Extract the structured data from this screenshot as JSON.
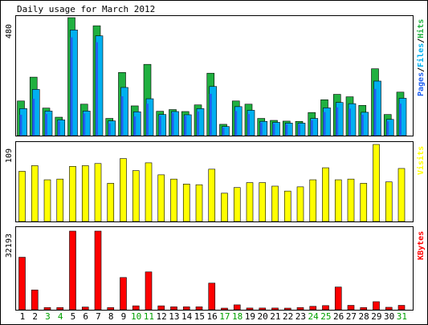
{
  "chart_data": [
    {
      "type": "bar",
      "title": "Daily usage for March 2012",
      "categories": [
        "1",
        "2",
        "3",
        "4",
        "5",
        "6",
        "7",
        "8",
        "9",
        "10",
        "11",
        "12",
        "13",
        "14",
        "15",
        "16",
        "17",
        "18",
        "19",
        "20",
        "21",
        "22",
        "23",
        "24",
        "25",
        "26",
        "27",
        "28",
        "29",
        "30",
        "31"
      ],
      "weekend_days": [
        "3",
        "4",
        "10",
        "11",
        "17",
        "18",
        "24",
        "25",
        "31"
      ],
      "ymax_label": "480",
      "ylim": [
        0,
        480
      ],
      "legend": [
        "Pages",
        "Files",
        "Hits"
      ],
      "series": [
        {
          "name": "Hits",
          "color": "#20b040",
          "values": [
            141,
            238,
            112,
            75,
            480,
            128,
            447,
            70,
            257,
            121,
            290,
            99,
            106,
            98,
            125,
            254,
            46,
            141,
            128,
            70,
            62,
            59,
            58,
            94,
            146,
            168,
            158,
            123,
            272,
            86,
            177
          ]
        },
        {
          "name": "Files",
          "color": "#00b0f0",
          "values": [
            110,
            188,
            100,
            64,
            430,
            100,
            406,
            60,
            196,
            97,
            150,
            86,
            98,
            85,
            110,
            200,
            37,
            118,
            103,
            58,
            54,
            51,
            51,
            70,
            113,
            135,
            130,
            95,
            222,
            66,
            152
          ]
        },
        {
          "name": "Pages",
          "color": "#2060f0",
          "values": [
            85,
            150,
            88,
            58,
            400,
            90,
            380,
            50,
            160,
            78,
            130,
            80,
            92,
            80,
            98,
            170,
            32,
            100,
            88,
            52,
            48,
            45,
            46,
            62,
            96,
            115,
            110,
            85,
            190,
            58,
            130
          ]
        }
      ]
    },
    {
      "type": "bar",
      "ymax_label": "109",
      "ylim": [
        0,
        109
      ],
      "series": [
        {
          "name": "Visits",
          "color": "#ffff00",
          "values": [
            71,
            79,
            59,
            60,
            78,
            79,
            82,
            54,
            89,
            72,
            83,
            66,
            60,
            53,
            52,
            74,
            40,
            48,
            55,
            55,
            50,
            43,
            49,
            59,
            76,
            59,
            60,
            54,
            109,
            56,
            75
          ]
        }
      ]
    },
    {
      "type": "bar",
      "ymax_label": "32193",
      "ylim": [
        0,
        32193
      ],
      "series": [
        {
          "name": "KBytes",
          "color": "#ff0000",
          "values": [
            21500,
            8100,
            900,
            900,
            32193,
            1100,
            32193,
            900,
            13200,
            1600,
            15500,
            1600,
            1200,
            1200,
            1200,
            10900,
            500,
            2000,
            700,
            700,
            700,
            600,
            900,
            1400,
            1700,
            9300,
            1800,
            900,
            3300,
            1000,
            1800
          ]
        }
      ]
    }
  ]
}
